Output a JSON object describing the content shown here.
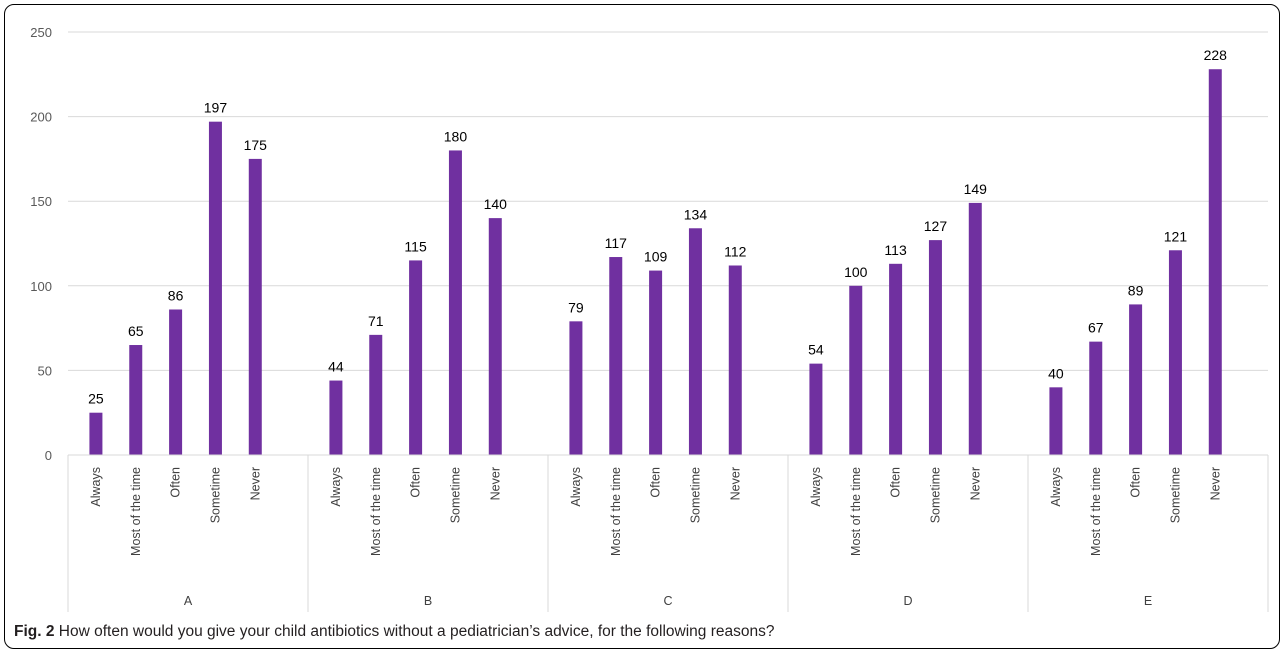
{
  "chart_data": {
    "type": "bar",
    "groups": [
      "A",
      "B",
      "C",
      "D",
      "E"
    ],
    "categories": [
      "Always",
      "Most of the time",
      "Often",
      "Sometime",
      "Never"
    ],
    "series": [
      {
        "group": "A",
        "values": [
          25,
          65,
          86,
          197,
          175
        ]
      },
      {
        "group": "B",
        "values": [
          44,
          71,
          115,
          180,
          140
        ]
      },
      {
        "group": "C",
        "values": [
          79,
          117,
          109,
          134,
          112
        ]
      },
      {
        "group": "D",
        "values": [
          54,
          100,
          113,
          127,
          149
        ]
      },
      {
        "group": "E",
        "values": [
          40,
          67,
          89,
          121,
          228
        ]
      }
    ],
    "ylim": [
      0,
      250
    ],
    "yticks": [
      0,
      50,
      100,
      150,
      200,
      250
    ],
    "grid": true,
    "data_labels": true,
    "bar_color": "#7030a0"
  },
  "caption": {
    "label": "Fig. 2",
    "text": "How often would you give your child antibiotics without a pediatrician’s advice, for the following reasons?"
  }
}
